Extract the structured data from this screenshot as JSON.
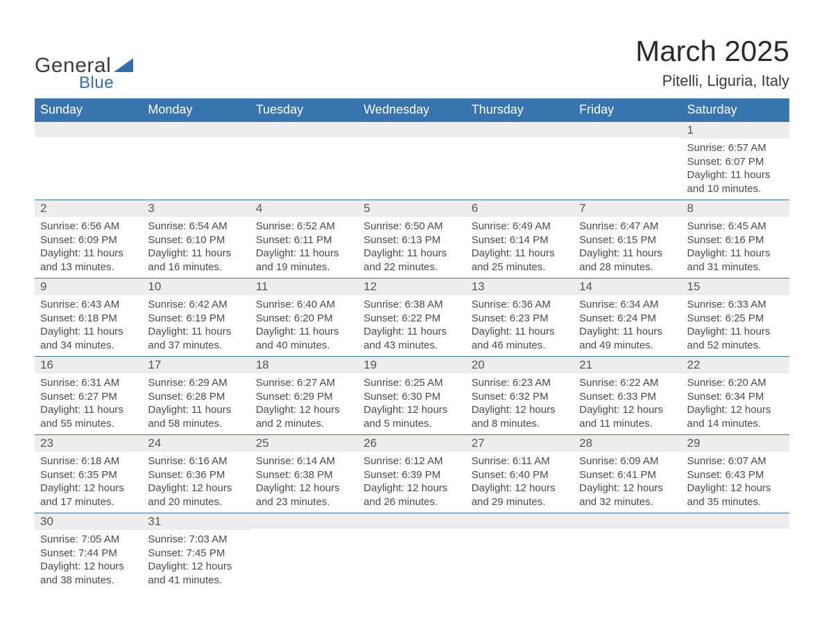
{
  "logo": {
    "text_general": "General",
    "text_blue": "Blue",
    "brand_color": "#2f6faf"
  },
  "title": "March 2025",
  "location": "Pitelli, Liguria, Italy",
  "colors": {
    "header_bg": "#3874af",
    "header_text": "#ffffff",
    "row_divider": "#3874af",
    "daynum_bg": "#ededed",
    "body_text": "#4a4a4a",
    "title_text": "#2b2b2b"
  },
  "fonts": {
    "family": "Arial",
    "title_size_pt": 32,
    "location_size_pt": 17,
    "header_size_pt": 14,
    "body_size_pt": 11
  },
  "day_headers": [
    "Sunday",
    "Monday",
    "Tuesday",
    "Wednesday",
    "Thursday",
    "Friday",
    "Saturday"
  ],
  "weeks": [
    [
      {
        "n": "",
        "sunrise": "",
        "sunset": "",
        "daylight": ""
      },
      {
        "n": "",
        "sunrise": "",
        "sunset": "",
        "daylight": ""
      },
      {
        "n": "",
        "sunrise": "",
        "sunset": "",
        "daylight": ""
      },
      {
        "n": "",
        "sunrise": "",
        "sunset": "",
        "daylight": ""
      },
      {
        "n": "",
        "sunrise": "",
        "sunset": "",
        "daylight": ""
      },
      {
        "n": "",
        "sunrise": "",
        "sunset": "",
        "daylight": ""
      },
      {
        "n": "1",
        "sunrise": "Sunrise: 6:57 AM",
        "sunset": "Sunset: 6:07 PM",
        "daylight": "Daylight: 11 hours and 10 minutes."
      }
    ],
    [
      {
        "n": "2",
        "sunrise": "Sunrise: 6:56 AM",
        "sunset": "Sunset: 6:09 PM",
        "daylight": "Daylight: 11 hours and 13 minutes."
      },
      {
        "n": "3",
        "sunrise": "Sunrise: 6:54 AM",
        "sunset": "Sunset: 6:10 PM",
        "daylight": "Daylight: 11 hours and 16 minutes."
      },
      {
        "n": "4",
        "sunrise": "Sunrise: 6:52 AM",
        "sunset": "Sunset: 6:11 PM",
        "daylight": "Daylight: 11 hours and 19 minutes."
      },
      {
        "n": "5",
        "sunrise": "Sunrise: 6:50 AM",
        "sunset": "Sunset: 6:13 PM",
        "daylight": "Daylight: 11 hours and 22 minutes."
      },
      {
        "n": "6",
        "sunrise": "Sunrise: 6:49 AM",
        "sunset": "Sunset: 6:14 PM",
        "daylight": "Daylight: 11 hours and 25 minutes."
      },
      {
        "n": "7",
        "sunrise": "Sunrise: 6:47 AM",
        "sunset": "Sunset: 6:15 PM",
        "daylight": "Daylight: 11 hours and 28 minutes."
      },
      {
        "n": "8",
        "sunrise": "Sunrise: 6:45 AM",
        "sunset": "Sunset: 6:16 PM",
        "daylight": "Daylight: 11 hours and 31 minutes."
      }
    ],
    [
      {
        "n": "9",
        "sunrise": "Sunrise: 6:43 AM",
        "sunset": "Sunset: 6:18 PM",
        "daylight": "Daylight: 11 hours and 34 minutes."
      },
      {
        "n": "10",
        "sunrise": "Sunrise: 6:42 AM",
        "sunset": "Sunset: 6:19 PM",
        "daylight": "Daylight: 11 hours and 37 minutes."
      },
      {
        "n": "11",
        "sunrise": "Sunrise: 6:40 AM",
        "sunset": "Sunset: 6:20 PM",
        "daylight": "Daylight: 11 hours and 40 minutes."
      },
      {
        "n": "12",
        "sunrise": "Sunrise: 6:38 AM",
        "sunset": "Sunset: 6:22 PM",
        "daylight": "Daylight: 11 hours and 43 minutes."
      },
      {
        "n": "13",
        "sunrise": "Sunrise: 6:36 AM",
        "sunset": "Sunset: 6:23 PM",
        "daylight": "Daylight: 11 hours and 46 minutes."
      },
      {
        "n": "14",
        "sunrise": "Sunrise: 6:34 AM",
        "sunset": "Sunset: 6:24 PM",
        "daylight": "Daylight: 11 hours and 49 minutes."
      },
      {
        "n": "15",
        "sunrise": "Sunrise: 6:33 AM",
        "sunset": "Sunset: 6:25 PM",
        "daylight": "Daylight: 11 hours and 52 minutes."
      }
    ],
    [
      {
        "n": "16",
        "sunrise": "Sunrise: 6:31 AM",
        "sunset": "Sunset: 6:27 PM",
        "daylight": "Daylight: 11 hours and 55 minutes."
      },
      {
        "n": "17",
        "sunrise": "Sunrise: 6:29 AM",
        "sunset": "Sunset: 6:28 PM",
        "daylight": "Daylight: 11 hours and 58 minutes."
      },
      {
        "n": "18",
        "sunrise": "Sunrise: 6:27 AM",
        "sunset": "Sunset: 6:29 PM",
        "daylight": "Daylight: 12 hours and 2 minutes."
      },
      {
        "n": "19",
        "sunrise": "Sunrise: 6:25 AM",
        "sunset": "Sunset: 6:30 PM",
        "daylight": "Daylight: 12 hours and 5 minutes."
      },
      {
        "n": "20",
        "sunrise": "Sunrise: 6:23 AM",
        "sunset": "Sunset: 6:32 PM",
        "daylight": "Daylight: 12 hours and 8 minutes."
      },
      {
        "n": "21",
        "sunrise": "Sunrise: 6:22 AM",
        "sunset": "Sunset: 6:33 PM",
        "daylight": "Daylight: 12 hours and 11 minutes."
      },
      {
        "n": "22",
        "sunrise": "Sunrise: 6:20 AM",
        "sunset": "Sunset: 6:34 PM",
        "daylight": "Daylight: 12 hours and 14 minutes."
      }
    ],
    [
      {
        "n": "23",
        "sunrise": "Sunrise: 6:18 AM",
        "sunset": "Sunset: 6:35 PM",
        "daylight": "Daylight: 12 hours and 17 minutes."
      },
      {
        "n": "24",
        "sunrise": "Sunrise: 6:16 AM",
        "sunset": "Sunset: 6:36 PM",
        "daylight": "Daylight: 12 hours and 20 minutes."
      },
      {
        "n": "25",
        "sunrise": "Sunrise: 6:14 AM",
        "sunset": "Sunset: 6:38 PM",
        "daylight": "Daylight: 12 hours and 23 minutes."
      },
      {
        "n": "26",
        "sunrise": "Sunrise: 6:12 AM",
        "sunset": "Sunset: 6:39 PM",
        "daylight": "Daylight: 12 hours and 26 minutes."
      },
      {
        "n": "27",
        "sunrise": "Sunrise: 6:11 AM",
        "sunset": "Sunset: 6:40 PM",
        "daylight": "Daylight: 12 hours and 29 minutes."
      },
      {
        "n": "28",
        "sunrise": "Sunrise: 6:09 AM",
        "sunset": "Sunset: 6:41 PM",
        "daylight": "Daylight: 12 hours and 32 minutes."
      },
      {
        "n": "29",
        "sunrise": "Sunrise: 6:07 AM",
        "sunset": "Sunset: 6:43 PM",
        "daylight": "Daylight: 12 hours and 35 minutes."
      }
    ],
    [
      {
        "n": "30",
        "sunrise": "Sunrise: 7:05 AM",
        "sunset": "Sunset: 7:44 PM",
        "daylight": "Daylight: 12 hours and 38 minutes."
      },
      {
        "n": "31",
        "sunrise": "Sunrise: 7:03 AM",
        "sunset": "Sunset: 7:45 PM",
        "daylight": "Daylight: 12 hours and 41 minutes."
      },
      {
        "n": "",
        "sunrise": "",
        "sunset": "",
        "daylight": ""
      },
      {
        "n": "",
        "sunrise": "",
        "sunset": "",
        "daylight": ""
      },
      {
        "n": "",
        "sunrise": "",
        "sunset": "",
        "daylight": ""
      },
      {
        "n": "",
        "sunrise": "",
        "sunset": "",
        "daylight": ""
      },
      {
        "n": "",
        "sunrise": "",
        "sunset": "",
        "daylight": ""
      }
    ]
  ]
}
